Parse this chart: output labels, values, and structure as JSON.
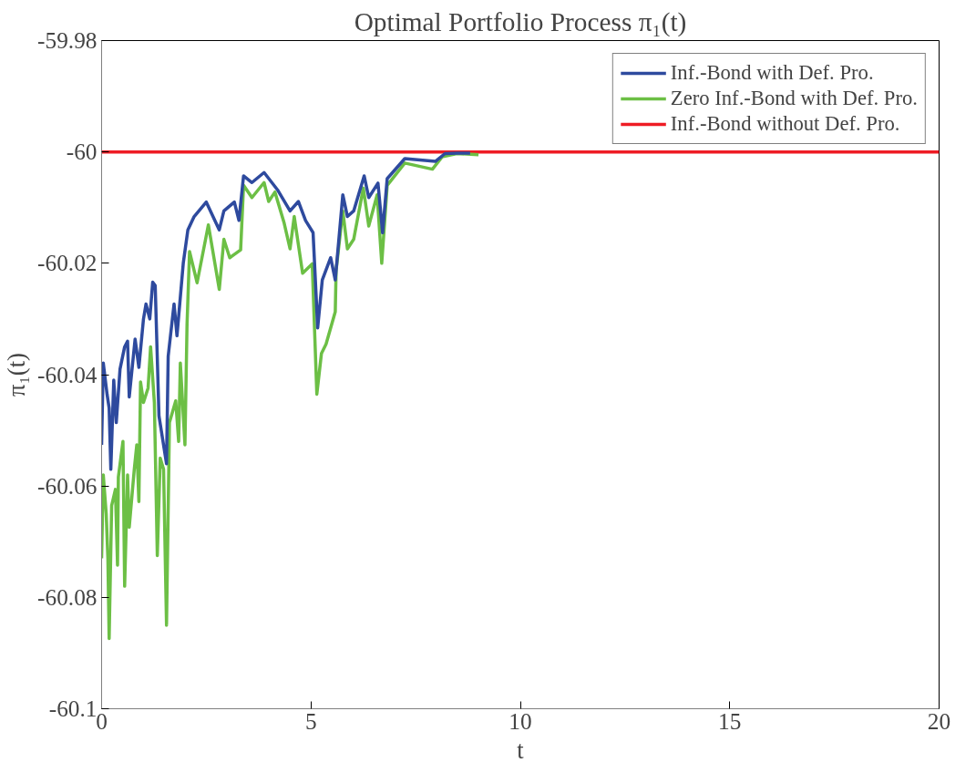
{
  "chart_data": {
    "type": "line",
    "title": "Optimal Portfolio Process π₁(t)",
    "xlabel": "t",
    "ylabel": "π₁(t)",
    "xlim": [
      0,
      20
    ],
    "xticks": [
      0,
      5,
      10,
      15,
      20
    ],
    "ylim": [
      -60.1,
      -59.98
    ],
    "yticks": [
      {
        "value": -60.1,
        "label": "-60.1"
      },
      {
        "value": -60.08,
        "label": "-60.08"
      },
      {
        "value": -60.06,
        "label": "-60.06"
      },
      {
        "value": -60.04,
        "label": "-60.04"
      },
      {
        "value": -60.02,
        "label": "-60.02"
      },
      {
        "value": -60,
        "label": "-60"
      },
      {
        "value": -59.98,
        "label": "-59.98"
      }
    ],
    "grid": false,
    "legend": "top right",
    "line_style": "solid",
    "marker": "none",
    "series": [
      {
        "name": "Inf.-Bond with Def. Pro.",
        "color": "#2e4a9e",
        "x": [
          0,
          0.04,
          0.13,
          0.18,
          0.22,
          0.29,
          0.35,
          0.44,
          0.55,
          0.62,
          0.66,
          0.8,
          0.89,
          1.0,
          1.06,
          1.15,
          1.22,
          1.28,
          1.37,
          1.55,
          1.59,
          1.73,
          1.8,
          1.95,
          2.06,
          2.21,
          2.5,
          2.81,
          2.92,
          3.17,
          3.28,
          3.39,
          3.59,
          3.88,
          4.2,
          4.5,
          4.7,
          4.87,
          5.05,
          5.16,
          5.27,
          5.47,
          5.58,
          5.76,
          5.87,
          6.02,
          6.27,
          6.38,
          6.6,
          6.71,
          6.82,
          7.24,
          7.97,
          8.2,
          8.5,
          8.8
        ],
        "values": [
          -60.0526,
          -60.0379,
          -60.0435,
          -60.046,
          -60.057,
          -60.041,
          -60.0486,
          -60.039,
          -60.035,
          -60.034,
          -60.044,
          -60.0336,
          -60.0387,
          -60.03,
          -60.0273,
          -60.03,
          -60.0234,
          -60.024,
          -60.0474,
          -60.056,
          -60.0367,
          -60.0273,
          -60.033,
          -60.02,
          -60.014,
          -60.0116,
          -60.009,
          -60.014,
          -60.0106,
          -60.009,
          -60.0123,
          -60.0043,
          -60.0055,
          -60.0037,
          -60.0068,
          -60.0106,
          -60.0089,
          -60.0123,
          -60.0145,
          -60.0316,
          -60.023,
          -60.019,
          -60.023,
          -60.0077,
          -60.0116,
          -60.0106,
          -60.0043,
          -60.0082,
          -60.0056,
          -60.0145,
          -60.0048,
          -60.0012,
          -60.0017,
          -60.0003,
          -60.0002,
          -60.0002
        ]
      },
      {
        "name": "Zero Inf.-Bond with Def. Pro.",
        "color": "#6cbf45",
        "x": [
          0,
          0.04,
          0.11,
          0.15,
          0.18,
          0.24,
          0.33,
          0.38,
          0.4,
          0.51,
          0.55,
          0.62,
          0.66,
          0.78,
          0.84,
          0.89,
          0.93,
          1.0,
          1.11,
          1.17,
          1.26,
          1.33,
          1.4,
          1.48,
          1.55,
          1.62,
          1.77,
          1.84,
          1.88,
          1.99,
          2.04,
          2.1,
          2.28,
          2.55,
          2.81,
          2.92,
          3.06,
          3.32,
          3.39,
          3.59,
          3.88,
          3.99,
          4.14,
          4.36,
          4.5,
          4.6,
          4.8,
          5.03,
          5.14,
          5.25,
          5.36,
          5.58,
          5.6,
          5.76,
          5.87,
          6.02,
          6.25,
          6.38,
          6.58,
          6.69,
          6.82,
          7.24,
          7.9,
          8.13,
          8.48,
          9.0
        ],
        "values": [
          -60.073,
          -60.058,
          -60.065,
          -60.073,
          -60.0874,
          -60.0635,
          -60.0606,
          -60.0742,
          -60.0584,
          -60.052,
          -60.078,
          -60.058,
          -60.0674,
          -60.057,
          -60.0526,
          -60.0628,
          -60.0413,
          -60.045,
          -60.0424,
          -60.035,
          -60.045,
          -60.0725,
          -60.055,
          -60.057,
          -60.085,
          -60.0486,
          -60.0447,
          -60.052,
          -60.0379,
          -60.0526,
          -60.031,
          -60.0179,
          -60.0235,
          -60.0131,
          -60.0247,
          -60.0157,
          -60.019,
          -60.0176,
          -60.006,
          -60.0082,
          -60.0055,
          -60.0089,
          -60.0072,
          -60.0128,
          -60.0174,
          -60.0116,
          -60.0218,
          -60.0201,
          -60.0435,
          -60.0362,
          -60.0345,
          -60.0287,
          -60.0213,
          -60.0106,
          -60.0174,
          -60.0157,
          -60.0065,
          -60.0133,
          -60.0077,
          -60.02,
          -60.006,
          -60.002,
          -60.0031,
          -60.0009,
          -60.0003,
          -60.0005
        ]
      },
      {
        "name": "Inf.-Bond without Def. Pro.",
        "color": "#ee1c24",
        "x": [
          0,
          20
        ],
        "values": [
          -60,
          -60
        ]
      }
    ]
  }
}
